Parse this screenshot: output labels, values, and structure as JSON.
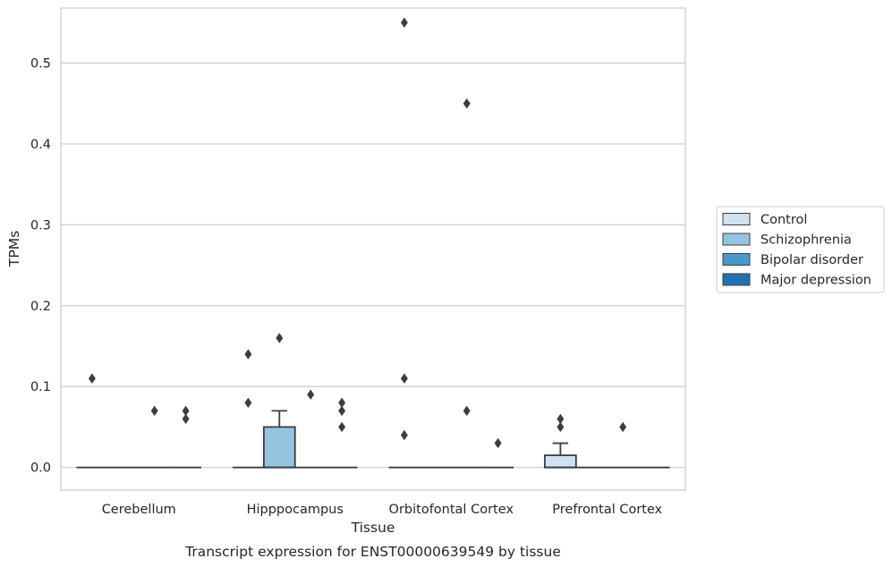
{
  "caption": "Transcript expression for ENST00000639549 by tissue",
  "chart_data": {
    "type": "box",
    "title": "",
    "xlabel": "Tissue",
    "ylabel": "TPMs",
    "ylim": [
      -0.028,
      0.568
    ],
    "yticks": [
      0.0,
      0.1,
      0.2,
      0.3,
      0.4,
      0.5
    ],
    "ytick_labels": [
      "0.0",
      "0.1",
      "0.2",
      "0.3",
      "0.4",
      "0.5"
    ],
    "grid": "horizontal",
    "legend_position": "right",
    "categories": [
      "Cerebellum",
      "Hipppocampus",
      "Orbitofontal Cortex",
      "Prefrontal Cortex"
    ],
    "series": [
      {
        "name": "Control",
        "color": "#d0e1f2",
        "boxes": [
          {
            "q1": 0,
            "median": 0,
            "q3": 0,
            "whisker_low": 0,
            "whisker_high": 0,
            "outliers": [
              0.11
            ]
          },
          {
            "q1": 0,
            "median": 0,
            "q3": 0,
            "whisker_low": 0,
            "whisker_high": 0,
            "outliers": [
              0.14,
              0.08
            ]
          },
          {
            "q1": 0,
            "median": 0,
            "q3": 0,
            "whisker_low": 0,
            "whisker_high": 0,
            "outliers": [
              0.55,
              0.11,
              0.04
            ]
          },
          {
            "q1": 0,
            "median": 0,
            "q3": 0.015,
            "whisker_low": 0,
            "whisker_high": 0.03,
            "outliers": [
              0.06,
              0.05
            ]
          }
        ]
      },
      {
        "name": "Schizophrenia",
        "color": "#94c4df",
        "boxes": [
          {
            "q1": 0,
            "median": 0,
            "q3": 0,
            "whisker_low": 0,
            "whisker_high": 0,
            "outliers": []
          },
          {
            "q1": 0,
            "median": 0,
            "q3": 0.05,
            "whisker_low": 0,
            "whisker_high": 0.07,
            "outliers": [
              0.16
            ]
          },
          {
            "q1": 0,
            "median": 0,
            "q3": 0,
            "whisker_low": 0,
            "whisker_high": 0,
            "outliers": []
          },
          {
            "q1": 0,
            "median": 0,
            "q3": 0,
            "whisker_low": 0,
            "whisker_high": 0,
            "outliers": []
          }
        ]
      },
      {
        "name": "Bipolar disorder",
        "color": "#4a98c9",
        "boxes": [
          {
            "q1": 0,
            "median": 0,
            "q3": 0,
            "whisker_low": 0,
            "whisker_high": 0,
            "outliers": [
              0.07
            ]
          },
          {
            "q1": 0,
            "median": 0,
            "q3": 0,
            "whisker_low": 0,
            "whisker_high": 0,
            "outliers": [
              0.09
            ]
          },
          {
            "q1": 0,
            "median": 0,
            "q3": 0,
            "whisker_low": 0,
            "whisker_high": 0,
            "outliers": [
              0.45,
              0.07
            ]
          },
          {
            "q1": 0,
            "median": 0,
            "q3": 0,
            "whisker_low": 0,
            "whisker_high": 0,
            "outliers": [
              0.05
            ]
          }
        ]
      },
      {
        "name": "Major depression",
        "color": "#2171b5",
        "boxes": [
          {
            "q1": 0,
            "median": 0,
            "q3": 0,
            "whisker_low": 0,
            "whisker_high": 0,
            "outliers": [
              0.07,
              0.06
            ]
          },
          {
            "q1": 0,
            "median": 0,
            "q3": 0,
            "whisker_low": 0,
            "whisker_high": 0,
            "outliers": [
              0.08,
              0.07,
              0.05
            ]
          },
          {
            "q1": 0,
            "median": 0,
            "q3": 0,
            "whisker_low": 0,
            "whisker_high": 0,
            "outliers": [
              0.03
            ]
          },
          {
            "q1": 0,
            "median": 0,
            "q3": 0,
            "whisker_low": 0,
            "whisker_high": 0,
            "outliers": []
          }
        ]
      }
    ]
  }
}
